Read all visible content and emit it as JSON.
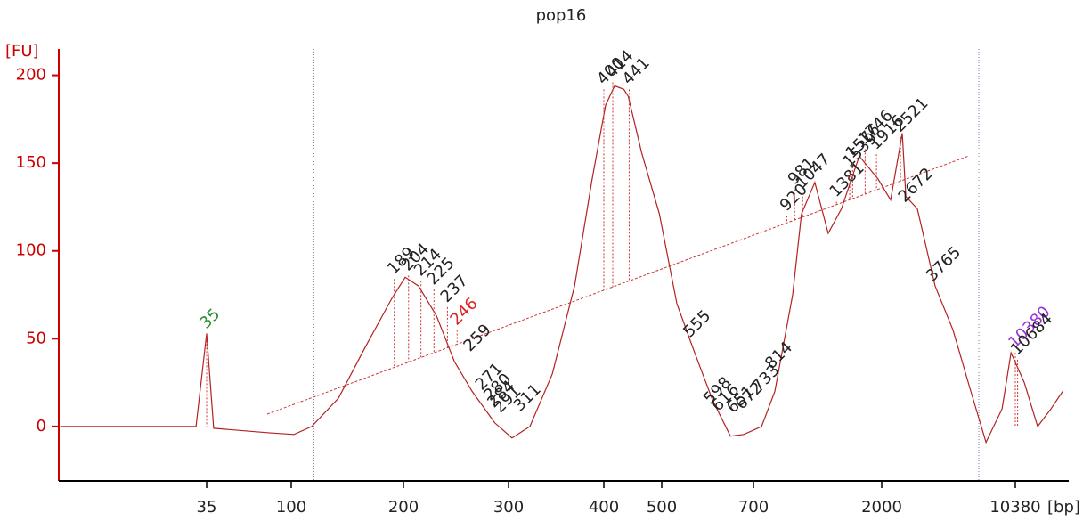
{
  "chart_data": {
    "type": "electropherogram",
    "title": "pop16",
    "y_label": "[FU]",
    "x_label": "[bp]",
    "axis_color": "#cc0000",
    "trace_color": "#b22222",
    "ylim": [
      -31,
      215
    ],
    "yticks": [
      0,
      50,
      100,
      150,
      200
    ],
    "xlim": [
      5.6,
      20110
    ],
    "xticks": [
      35,
      100,
      200,
      300,
      400,
      500,
      700,
      2000,
      10380
    ],
    "x_scale": "ladder",
    "marker_lines": [
      115,
      6620
    ],
    "x": [
      5.7,
      30.7,
      35,
      38.2,
      74.2,
      101.7,
      113.5,
      133.8,
      157.8,
      186.2,
      201.4,
      212.0,
      227.2,
      243.4,
      260.8,
      284.5,
      303.2,
      320.0,
      342.4,
      366.1,
      386.2,
      402.8,
      416.9,
      432.0,
      439.5,
      462.7,
      495.6,
      528.6,
      564.3,
      602.5,
      643.2,
      675.6,
      747.8,
      834.1,
      965.0,
      1037,
      1157,
      1290,
      1439,
      1664,
      1939,
      2232,
      2576,
      2692,
      3104,
      3866,
      4816,
      6000,
      7233,
      8818,
      9843,
      11600,
      13690,
      16140,
      18630
    ],
    "values": [
      0,
      0,
      53,
      -1,
      -3.5,
      -4.5,
      0,
      16,
      45,
      73,
      85,
      80,
      63,
      37,
      20,
      2,
      -6.5,
      0,
      30,
      80,
      141,
      183,
      194,
      192,
      188,
      156,
      121,
      70,
      42,
      15,
      -5.5,
      -4.5,
      0,
      20,
      75,
      121,
      139,
      110,
      124,
      154,
      141,
      129,
      167,
      131,
      124,
      80,
      55,
      20,
      -9,
      10,
      42,
      25,
      0,
      10,
      20
    ],
    "peaks": {
      "sizes": [
        35,
        189,
        204,
        214,
        225,
        237,
        246,
        259,
        271,
        280,
        284,
        291,
        311,
        400,
        414,
        441,
        555,
        598,
        616,
        651,
        672,
        733,
        814,
        920,
        981,
        1047,
        1381,
        1539,
        1576,
        1746,
        1916,
        2521,
        2672,
        3765,
        10380,
        10684
      ],
      "heights": [
        53,
        84,
        86,
        83,
        78,
        68,
        55,
        40,
        18,
        12,
        8,
        5,
        6,
        192,
        196,
        192,
        48,
        10,
        6,
        5,
        7,
        17,
        30,
        120,
        135,
        133,
        128,
        145,
        150,
        158,
        155,
        165,
        125,
        80,
        42,
        38
      ],
      "colors": [
        "#2e8b2e",
        "#222222",
        "#222222",
        "#222222",
        "#222222",
        "#222222",
        "#dd2222",
        "#222222",
        "#222222",
        "#222222",
        "#222222",
        "#222222",
        "#222222",
        "#222222",
        "#222222",
        "#222222",
        "#222222",
        "#222222",
        "#222222",
        "#222222",
        "#222222",
        "#222222",
        "#222222",
        "#222222",
        "#222222",
        "#222222",
        "#222222",
        "#222222",
        "#222222",
        "#222222",
        "#222222",
        "#222222",
        "#222222",
        "#222222",
        "#9933dd",
        "#222222"
      ]
    }
  }
}
